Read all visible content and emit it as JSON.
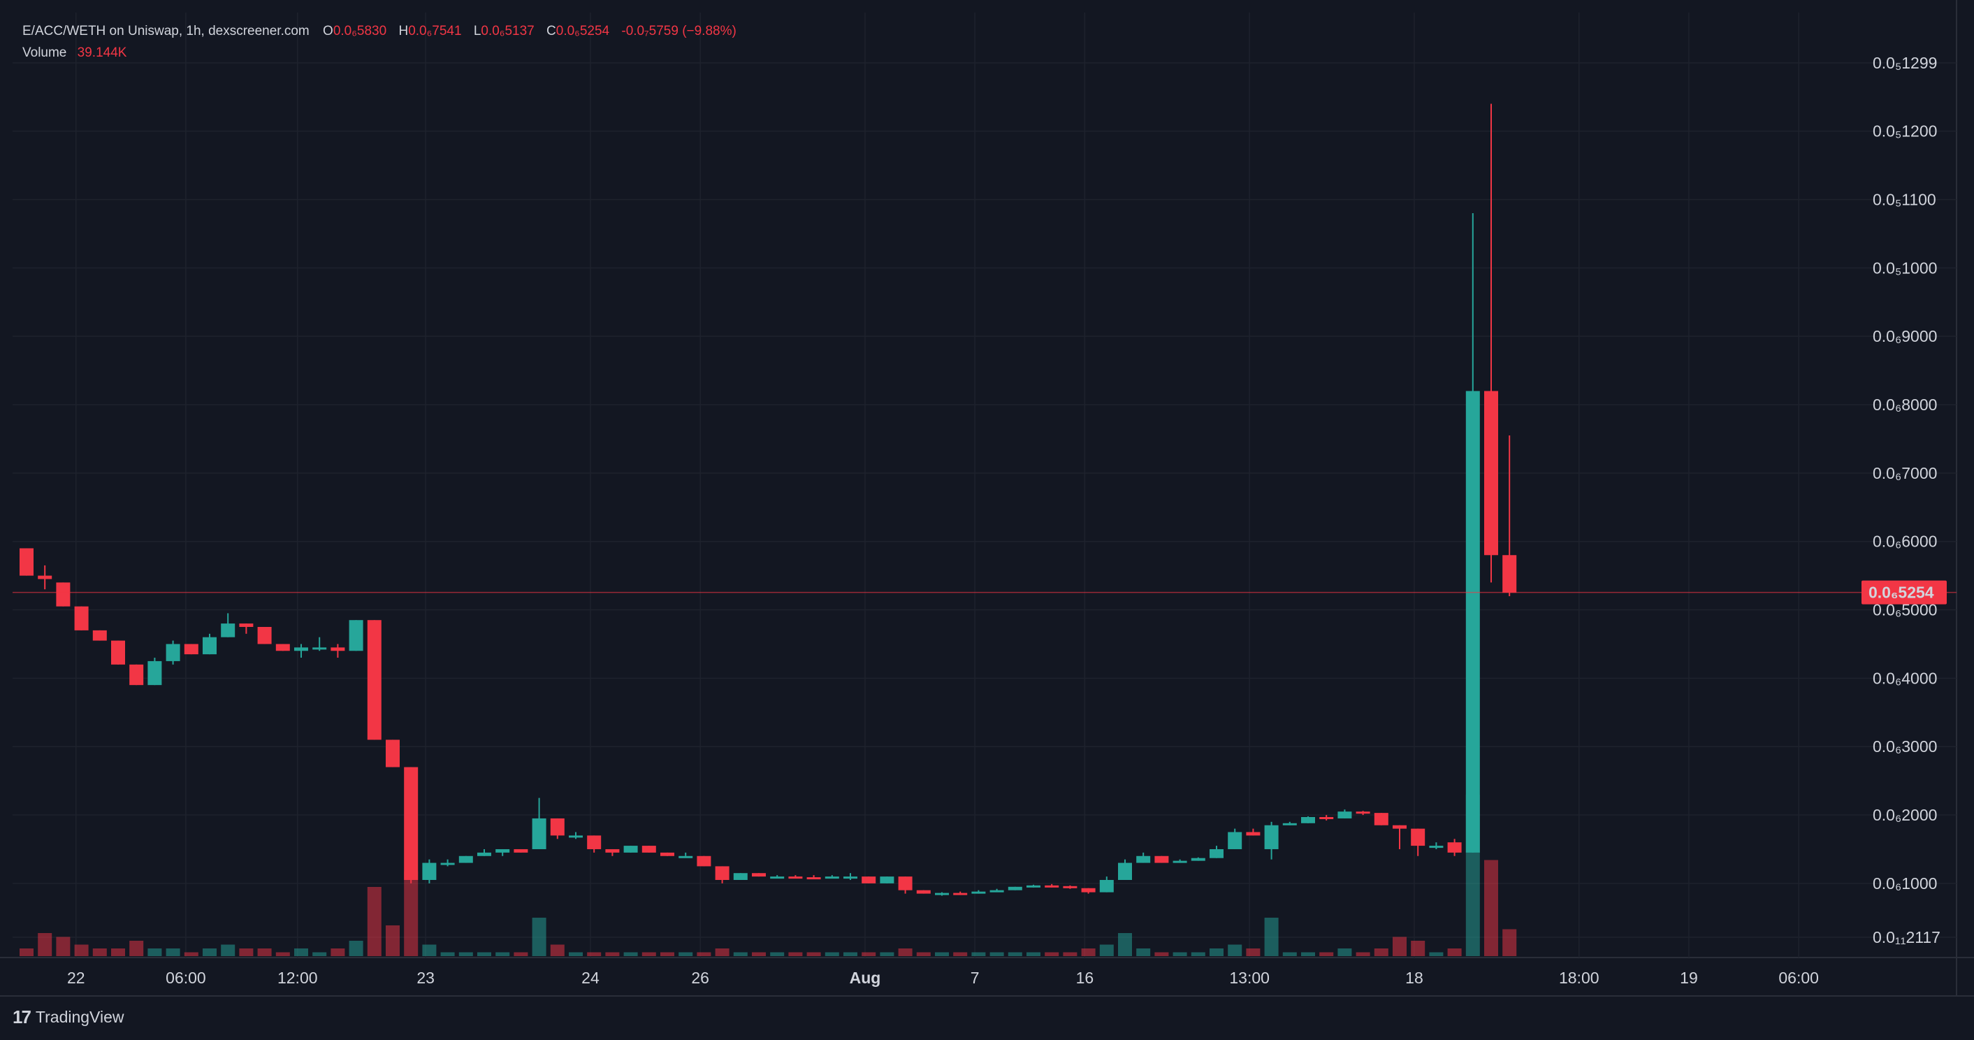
{
  "header": {
    "symbol_line": "E/ACC/WETH on Uniswap, 1h, dexscreener.com",
    "open_label": "O",
    "open_value": "0.0₆5830",
    "high_label": "H",
    "high_value": "0.0₆7541",
    "low_label": "L",
    "low_value": "0.0₆5137",
    "close_label": "C",
    "close_value": "0.0₆5254",
    "change_value": "-0.0₇5759 (−9.88%)",
    "volume_label": "Volume",
    "volume_value": "39.144K"
  },
  "colors": {
    "up": "#26a69a",
    "down": "#f23645",
    "background": "#131722",
    "text": "#d1d4dc"
  },
  "brand": {
    "name": "TradingView",
    "logo": "17"
  },
  "chart_data": {
    "type": "candlestick",
    "title": "E/ACC/WETH on Uniswap, 1h, dexscreener.com",
    "y_scale_unit": "price × 10^-7 WETH",
    "ylim": [
      0.0212,
      1.34
    ],
    "y_ticks": [
      {
        "value": 0.0212,
        "label": "0.0₁₁2117"
      },
      {
        "value": 0.1,
        "label": "0.0₆1000"
      },
      {
        "value": 0.2,
        "label": "0.0₆2000"
      },
      {
        "value": 0.3,
        "label": "0.0₆3000"
      },
      {
        "value": 0.4,
        "label": "0.0₆4000"
      },
      {
        "value": 0.5,
        "label": "0.0₆5000"
      },
      {
        "value": 0.6,
        "label": "0.0₆6000"
      },
      {
        "value": 0.7,
        "label": "0.0₆7000"
      },
      {
        "value": 0.8,
        "label": "0.0₆8000"
      },
      {
        "value": 0.9,
        "label": "0.0₆9000"
      },
      {
        "value": 1.0,
        "label": "0.0₅1000"
      },
      {
        "value": 1.1,
        "label": "0.0₅1100"
      },
      {
        "value": 1.2,
        "label": "0.0₅1200"
      },
      {
        "value": 1.2998,
        "label": "0.0₅1299"
      }
    ],
    "current_price": {
      "value": 0.5254,
      "label": "0.0₆5254"
    },
    "x_ticks": [
      {
        "index": 2.7,
        "label": "22"
      },
      {
        "index": 8.7,
        "label": "06:00"
      },
      {
        "index": 14.8,
        "label": "12:00"
      },
      {
        "index": 21.8,
        "label": "23"
      },
      {
        "index": 30.8,
        "label": "24"
      },
      {
        "index": 36.8,
        "label": "26"
      },
      {
        "index": 45.8,
        "label": "Aug",
        "bold": true
      },
      {
        "index": 51.8,
        "label": "7"
      },
      {
        "index": 57.8,
        "label": "16"
      },
      {
        "index": 66.8,
        "label": "13:00"
      },
      {
        "index": 75.8,
        "label": "18"
      },
      {
        "index": 84.8,
        "label": "18:00"
      },
      {
        "index": 90.8,
        "label": "19"
      },
      {
        "index": 96.8,
        "label": "06:00"
      }
    ],
    "volume_max": 60,
    "candles": [
      {
        "o": 0.59,
        "h": 0.59,
        "l": 0.55,
        "c": 0.55,
        "v": 2
      },
      {
        "o": 0.55,
        "h": 0.565,
        "l": 0.53,
        "c": 0.545,
        "v": 6
      },
      {
        "o": 0.54,
        "h": 0.54,
        "l": 0.505,
        "c": 0.505,
        "v": 5
      },
      {
        "o": 0.505,
        "h": 0.505,
        "l": 0.47,
        "c": 0.47,
        "v": 3
      },
      {
        "o": 0.47,
        "h": 0.47,
        "l": 0.455,
        "c": 0.455,
        "v": 2
      },
      {
        "o": 0.455,
        "h": 0.455,
        "l": 0.42,
        "c": 0.42,
        "v": 2
      },
      {
        "o": 0.42,
        "h": 0.42,
        "l": 0.39,
        "c": 0.39,
        "v": 4
      },
      {
        "o": 0.39,
        "h": 0.43,
        "l": 0.39,
        "c": 0.425,
        "v": 2
      },
      {
        "o": 0.425,
        "h": 0.455,
        "l": 0.42,
        "c": 0.45,
        "v": 2
      },
      {
        "o": 0.45,
        "h": 0.45,
        "l": 0.435,
        "c": 0.435,
        "v": 1
      },
      {
        "o": 0.435,
        "h": 0.465,
        "l": 0.435,
        "c": 0.46,
        "v": 2
      },
      {
        "o": 0.46,
        "h": 0.495,
        "l": 0.46,
        "c": 0.48,
        "v": 3
      },
      {
        "o": 0.48,
        "h": 0.48,
        "l": 0.465,
        "c": 0.475,
        "v": 2
      },
      {
        "o": 0.475,
        "h": 0.475,
        "l": 0.45,
        "c": 0.45,
        "v": 2
      },
      {
        "o": 0.45,
        "h": 0.45,
        "l": 0.44,
        "c": 0.44,
        "v": 1
      },
      {
        "o": 0.44,
        "h": 0.45,
        "l": 0.43,
        "c": 0.445,
        "v": 2
      },
      {
        "o": 0.445,
        "h": 0.46,
        "l": 0.44,
        "c": 0.445,
        "v": 1
      },
      {
        "o": 0.445,
        "h": 0.45,
        "l": 0.43,
        "c": 0.44,
        "v": 2
      },
      {
        "o": 0.44,
        "h": 0.485,
        "l": 0.44,
        "c": 0.485,
        "v": 4
      },
      {
        "o": 0.485,
        "h": 0.485,
        "l": 0.31,
        "c": 0.31,
        "v": 18
      },
      {
        "o": 0.31,
        "h": 0.31,
        "l": 0.27,
        "c": 0.27,
        "v": 8
      },
      {
        "o": 0.27,
        "h": 0.27,
        "l": 0.1,
        "c": 0.105,
        "v": 22
      },
      {
        "o": 0.105,
        "h": 0.135,
        "l": 0.1,
        "c": 0.13,
        "v": 3
      },
      {
        "o": 0.13,
        "h": 0.135,
        "l": 0.125,
        "c": 0.13,
        "v": 1
      },
      {
        "o": 0.13,
        "h": 0.14,
        "l": 0.13,
        "c": 0.14,
        "v": 1
      },
      {
        "o": 0.14,
        "h": 0.15,
        "l": 0.14,
        "c": 0.145,
        "v": 1
      },
      {
        "o": 0.145,
        "h": 0.15,
        "l": 0.14,
        "c": 0.15,
        "v": 1
      },
      {
        "o": 0.15,
        "h": 0.15,
        "l": 0.145,
        "c": 0.145,
        "v": 1
      },
      {
        "o": 0.15,
        "h": 0.225,
        "l": 0.15,
        "c": 0.195,
        "v": 10
      },
      {
        "o": 0.195,
        "h": 0.195,
        "l": 0.165,
        "c": 0.17,
        "v": 3
      },
      {
        "o": 0.17,
        "h": 0.175,
        "l": 0.165,
        "c": 0.17,
        "v": 1
      },
      {
        "o": 0.17,
        "h": 0.17,
        "l": 0.145,
        "c": 0.15,
        "v": 1
      },
      {
        "o": 0.15,
        "h": 0.15,
        "l": 0.14,
        "c": 0.145,
        "v": 1
      },
      {
        "o": 0.145,
        "h": 0.155,
        "l": 0.145,
        "c": 0.155,
        "v": 1
      },
      {
        "o": 0.155,
        "h": 0.155,
        "l": 0.145,
        "c": 0.145,
        "v": 1
      },
      {
        "o": 0.145,
        "h": 0.145,
        "l": 0.14,
        "c": 0.14,
        "v": 1
      },
      {
        "o": 0.14,
        "h": 0.145,
        "l": 0.14,
        "c": 0.14,
        "v": 1
      },
      {
        "o": 0.14,
        "h": 0.14,
        "l": 0.125,
        "c": 0.125,
        "v": 1
      },
      {
        "o": 0.125,
        "h": 0.125,
        "l": 0.1,
        "c": 0.105,
        "v": 2
      },
      {
        "o": 0.105,
        "h": 0.115,
        "l": 0.105,
        "c": 0.115,
        "v": 1
      },
      {
        "o": 0.115,
        "h": 0.115,
        "l": 0.11,
        "c": 0.11,
        "v": 1
      },
      {
        "o": 0.11,
        "h": 0.112,
        "l": 0.108,
        "c": 0.11,
        "v": 1
      },
      {
        "o": 0.11,
        "h": 0.112,
        "l": 0.108,
        "c": 0.109,
        "v": 1
      },
      {
        "o": 0.109,
        "h": 0.112,
        "l": 0.106,
        "c": 0.108,
        "v": 1
      },
      {
        "o": 0.108,
        "h": 0.112,
        "l": 0.108,
        "c": 0.11,
        "v": 1
      },
      {
        "o": 0.11,
        "h": 0.115,
        "l": 0.105,
        "c": 0.11,
        "v": 1
      },
      {
        "o": 0.11,
        "h": 0.11,
        "l": 0.1,
        "c": 0.1,
        "v": 1
      },
      {
        "o": 0.1,
        "h": 0.11,
        "l": 0.1,
        "c": 0.11,
        "v": 1
      },
      {
        "o": 0.11,
        "h": 0.11,
        "l": 0.085,
        "c": 0.09,
        "v": 2
      },
      {
        "o": 0.09,
        "h": 0.09,
        "l": 0.085,
        "c": 0.085,
        "v": 1
      },
      {
        "o": 0.085,
        "h": 0.087,
        "l": 0.082,
        "c": 0.086,
        "v": 1
      },
      {
        "o": 0.086,
        "h": 0.088,
        "l": 0.083,
        "c": 0.085,
        "v": 1
      },
      {
        "o": 0.085,
        "h": 0.09,
        "l": 0.085,
        "c": 0.088,
        "v": 1
      },
      {
        "o": 0.088,
        "h": 0.092,
        "l": 0.088,
        "c": 0.09,
        "v": 1
      },
      {
        "o": 0.09,
        "h": 0.095,
        "l": 0.09,
        "c": 0.095,
        "v": 1
      },
      {
        "o": 0.095,
        "h": 0.098,
        "l": 0.094,
        "c": 0.097,
        "v": 1
      },
      {
        "o": 0.097,
        "h": 0.099,
        "l": 0.094,
        "c": 0.096,
        "v": 1
      },
      {
        "o": 0.096,
        "h": 0.097,
        "l": 0.092,
        "c": 0.093,
        "v": 1
      },
      {
        "o": 0.093,
        "h": 0.093,
        "l": 0.085,
        "c": 0.087,
        "v": 2
      },
      {
        "o": 0.087,
        "h": 0.11,
        "l": 0.087,
        "c": 0.105,
        "v": 3
      },
      {
        "o": 0.105,
        "h": 0.135,
        "l": 0.105,
        "c": 0.13,
        "v": 6
      },
      {
        "o": 0.13,
        "h": 0.145,
        "l": 0.13,
        "c": 0.14,
        "v": 2
      },
      {
        "o": 0.14,
        "h": 0.14,
        "l": 0.13,
        "c": 0.13,
        "v": 1
      },
      {
        "o": 0.13,
        "h": 0.135,
        "l": 0.13,
        "c": 0.133,
        "v": 1
      },
      {
        "o": 0.133,
        "h": 0.138,
        "l": 0.133,
        "c": 0.137,
        "v": 1
      },
      {
        "o": 0.137,
        "h": 0.155,
        "l": 0.137,
        "c": 0.15,
        "v": 2
      },
      {
        "o": 0.15,
        "h": 0.18,
        "l": 0.15,
        "c": 0.175,
        "v": 3
      },
      {
        "o": 0.175,
        "h": 0.18,
        "l": 0.17,
        "c": 0.17,
        "v": 2
      },
      {
        "o": 0.15,
        "h": 0.19,
        "l": 0.135,
        "c": 0.185,
        "v": 10
      },
      {
        "o": 0.185,
        "h": 0.19,
        "l": 0.185,
        "c": 0.188,
        "v": 1
      },
      {
        "o": 0.188,
        "h": 0.198,
        "l": 0.188,
        "c": 0.197,
        "v": 1
      },
      {
        "o": 0.197,
        "h": 0.2,
        "l": 0.192,
        "c": 0.195,
        "v": 1
      },
      {
        "o": 0.195,
        "h": 0.208,
        "l": 0.195,
        "c": 0.205,
        "v": 2
      },
      {
        "o": 0.205,
        "h": 0.206,
        "l": 0.2,
        "c": 0.203,
        "v": 1
      },
      {
        "o": 0.203,
        "h": 0.203,
        "l": 0.185,
        "c": 0.185,
        "v": 2
      },
      {
        "o": 0.185,
        "h": 0.185,
        "l": 0.15,
        "c": 0.18,
        "v": 5
      },
      {
        "o": 0.18,
        "h": 0.18,
        "l": 0.14,
        "c": 0.155,
        "v": 4
      },
      {
        "o": 0.155,
        "h": 0.16,
        "l": 0.15,
        "c": 0.155,
        "v": 1
      },
      {
        "o": 0.16,
        "h": 0.165,
        "l": 0.14,
        "c": 0.145,
        "v": 2
      },
      {
        "o": 0.145,
        "h": 1.08,
        "l": 0.145,
        "c": 0.82,
        "v": 42
      },
      {
        "o": 0.82,
        "h": 1.24,
        "l": 0.54,
        "c": 0.58,
        "v": 25
      },
      {
        "o": 0.58,
        "h": 0.755,
        "l": 0.52,
        "c": 0.525,
        "v": 7
      }
    ]
  }
}
